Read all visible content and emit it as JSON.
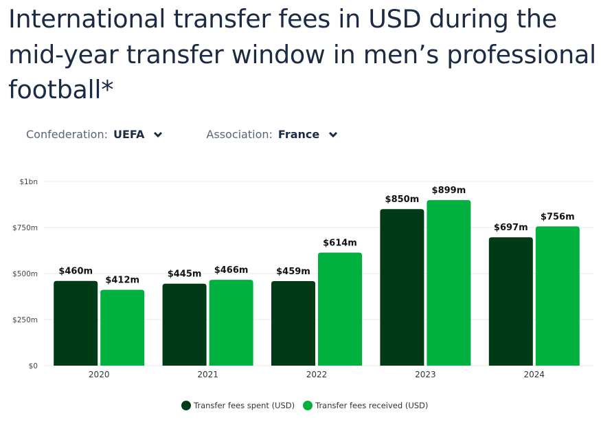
{
  "title": "International transfer fees in USD during the mid-year transfer window in men’s professional football*",
  "filters": [
    {
      "label": "Confederation:",
      "value": "UEFA"
    },
    {
      "label": "Association:",
      "value": "France"
    }
  ],
  "chart_data": {
    "type": "bar",
    "categories": [
      "2020",
      "2021",
      "2022",
      "2023",
      "2024"
    ],
    "series": [
      {
        "name": "Transfer fees spent (USD)",
        "values": [
          460,
          445,
          459,
          850,
          697
        ],
        "labels": [
          "$460m",
          "$445m",
          "$459m",
          "$850m",
          "$697m"
        ],
        "color": "#003a17"
      },
      {
        "name": "Transfer fees received (USD)",
        "values": [
          412,
          466,
          614,
          899,
          756
        ],
        "labels": [
          "$412m",
          "$466m",
          "$614m",
          "$899m",
          "$756m"
        ],
        "color": "#00b140"
      }
    ],
    "yticks": [
      0,
      250,
      500,
      750,
      1000
    ],
    "ytick_labels": [
      "$0",
      "$250m",
      "$500m",
      "$750m",
      "$1bn"
    ],
    "ylim": [
      0,
      1000
    ],
    "unit": "USD millions",
    "grid": true,
    "legend_position": "bottom"
  }
}
